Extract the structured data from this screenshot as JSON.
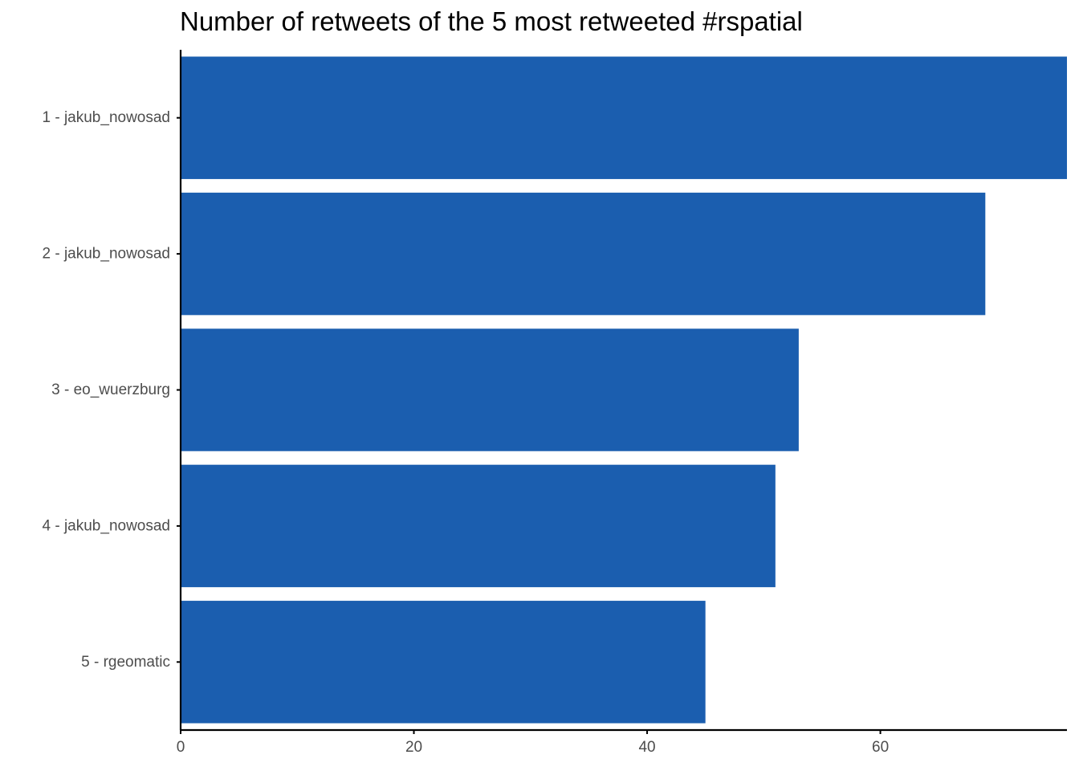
{
  "chart_data": {
    "type": "bar",
    "orientation": "horizontal",
    "title": "Number of retweets of the 5 most retweeted #rspatial",
    "xlabel": "",
    "ylabel": "",
    "categories": [
      "1 - jakub_nowosad",
      "2 - jakub_nowosad",
      "3 - eo_wuerzburg",
      "4 - jakub_nowosad",
      "5 - rgeomatic"
    ],
    "values": [
      76,
      69,
      53,
      51,
      45
    ],
    "xlim": [
      0,
      76
    ],
    "x_ticks": [
      0,
      20,
      40,
      60
    ],
    "grid": false,
    "bar_color": "#1b5eaf",
    "axis_color": "#000000",
    "tick_label_color": "#4d4d4d"
  }
}
